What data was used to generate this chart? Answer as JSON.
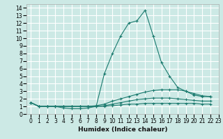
{
  "xlabel": "Humidex (Indice chaleur)",
  "ylabel": "",
  "bg_color": "#cce9e5",
  "grid_color": "#ffffff",
  "line_color": "#1a7a6e",
  "xlim": [
    -0.5,
    23
  ],
  "ylim": [
    0,
    14.5
  ],
  "xticks": [
    0,
    1,
    2,
    3,
    4,
    5,
    6,
    7,
    8,
    9,
    10,
    11,
    12,
    13,
    14,
    15,
    16,
    17,
    18,
    19,
    20,
    21,
    22,
    23
  ],
  "yticks": [
    0,
    1,
    2,
    3,
    4,
    5,
    6,
    7,
    8,
    9,
    10,
    11,
    12,
    13,
    14
  ],
  "series": [
    [
      1.5,
      1.0,
      1.0,
      1.0,
      0.8,
      0.7,
      0.7,
      0.8,
      1.0,
      5.3,
      8.0,
      10.3,
      12.0,
      12.3,
      13.7,
      10.3,
      6.8,
      5.0,
      3.5,
      3.0,
      2.5,
      2.3,
      2.3
    ],
    [
      1.5,
      1.0,
      1.0,
      1.0,
      1.0,
      1.0,
      1.0,
      1.0,
      1.1,
      1.3,
      1.7,
      2.0,
      2.3,
      2.6,
      2.9,
      3.1,
      3.2,
      3.2,
      3.2,
      3.0,
      2.7,
      2.4,
      2.3
    ],
    [
      1.5,
      1.0,
      1.0,
      1.0,
      1.0,
      1.0,
      1.0,
      1.0,
      1.0,
      1.1,
      1.3,
      1.5,
      1.7,
      1.9,
      2.0,
      2.1,
      2.1,
      2.1,
      2.0,
      1.9,
      1.8,
      1.7,
      1.7
    ],
    [
      1.5,
      1.0,
      1.0,
      1.0,
      1.0,
      1.0,
      1.0,
      1.0,
      1.0,
      1.0,
      1.1,
      1.2,
      1.3,
      1.3,
      1.4,
      1.4,
      1.4,
      1.4,
      1.4,
      1.4,
      1.4,
      1.3,
      1.3
    ]
  ],
  "x_values": [
    0,
    1,
    2,
    3,
    4,
    5,
    6,
    7,
    8,
    9,
    10,
    11,
    12,
    13,
    14,
    15,
    16,
    17,
    18,
    19,
    20,
    21,
    22
  ]
}
